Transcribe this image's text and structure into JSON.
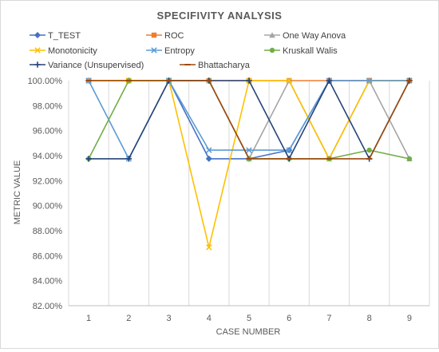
{
  "chart_data": {
    "type": "line",
    "title": "SPECIFIVITY ANALYSIS",
    "xlabel": "CASE NUMBER",
    "ylabel": "METRIC VALUE",
    "x": [
      1,
      2,
      3,
      4,
      5,
      6,
      7,
      8,
      9
    ],
    "ylim": [
      82,
      100
    ],
    "y_ticks": [
      "82.00%",
      "84.00%",
      "86.00%",
      "88.00%",
      "90.00%",
      "92.00%",
      "94.00%",
      "96.00%",
      "98.00%",
      "100.00%"
    ],
    "grid": "vertical",
    "legend_position": "top",
    "series": [
      {
        "name": "T_TEST",
        "color": "#4472c4",
        "marker": "diamond",
        "values": [
          100,
          100,
          100,
          93.75,
          93.75,
          94.44,
          100,
          100,
          100
        ]
      },
      {
        "name": "ROC",
        "color": "#ed7d31",
        "marker": "square",
        "values": [
          100,
          100,
          100,
          100,
          100,
          100,
          100,
          100,
          100
        ]
      },
      {
        "name": "One Way Anova",
        "color": "#a5a5a5",
        "marker": "triangle",
        "values": [
          100,
          100,
          100,
          100,
          93.75,
          100,
          93.75,
          100,
          93.75
        ]
      },
      {
        "name": "Monotonicity",
        "color": "#ffc000",
        "marker": "x",
        "values": [
          100,
          100,
          100,
          86.67,
          100,
          100,
          93.75,
          100,
          100
        ]
      },
      {
        "name": "Entropy",
        "color": "#5b9bd5",
        "marker": "x",
        "values": [
          100,
          93.75,
          100,
          94.44,
          94.44,
          94.44,
          100,
          100,
          100
        ]
      },
      {
        "name": "Kruskall Walis",
        "color": "#70ad47",
        "marker": "circle",
        "values": [
          93.75,
          100,
          100,
          100,
          93.75,
          93.75,
          93.75,
          94.44,
          93.75
        ]
      },
      {
        "name": "Variance (Unsupervised)",
        "color": "#264478",
        "marker": "plus",
        "values": [
          93.75,
          93.75,
          100,
          100,
          100,
          93.75,
          100,
          93.75,
          100
        ]
      },
      {
        "name": "Bhattacharya",
        "color": "#9e480e",
        "marker": "dash",
        "values": [
          100,
          100,
          100,
          100,
          93.75,
          93.75,
          93.75,
          93.75,
          100
        ]
      }
    ]
  }
}
